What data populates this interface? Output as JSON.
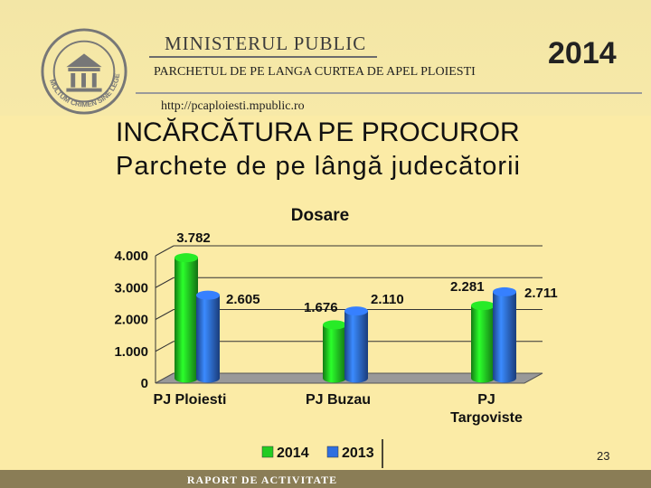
{
  "header": {
    "ministry": "MINISTERUL PUBLIC",
    "office": "PARCHETUL DE PE LANGA CURTEA DE APEL PLOIESTI",
    "url": "http://pcaploiesti.mpublic.ro",
    "year": "2014",
    "seal_text": "MULTUM CRIMEN SINE LEGE"
  },
  "slide": {
    "title": "INCĂRCĂTURA PE PROCUROR",
    "subtitle": "Parchete de pe lângă judecătorii",
    "page_number": "23",
    "footer": "RAPORT DE ACTIVITATE"
  },
  "colors": {
    "series_2014": "#22cc22",
    "series_2013": "#2f6fe0",
    "background": "#fbeba6"
  },
  "chart_data": {
    "type": "bar",
    "title": "Dosare",
    "categories": [
      "PJ Ploiesti",
      "PJ Buzau",
      "PJ Targoviste"
    ],
    "category_lines": [
      [
        "PJ Ploiesti"
      ],
      [
        "PJ Buzau"
      ],
      [
        "PJ",
        "Targoviste"
      ]
    ],
    "series": [
      {
        "name": "2014",
        "values": [
          3782,
          1676,
          2281
        ],
        "labels": [
          "3.782",
          "1.676",
          "2.281"
        ]
      },
      {
        "name": "2013",
        "values": [
          2605,
          2110,
          2711
        ],
        "labels": [
          "2.605",
          "2.110",
          "2.711"
        ]
      }
    ],
    "y_ticks": [
      0,
      1000,
      2000,
      3000,
      4000
    ],
    "y_tick_labels": [
      "0",
      "1.000",
      "2.000",
      "3.000",
      "4.000"
    ],
    "ylim": [
      0,
      4000
    ],
    "grid": true,
    "legend": "bottom",
    "style": "3d-cylinder"
  }
}
